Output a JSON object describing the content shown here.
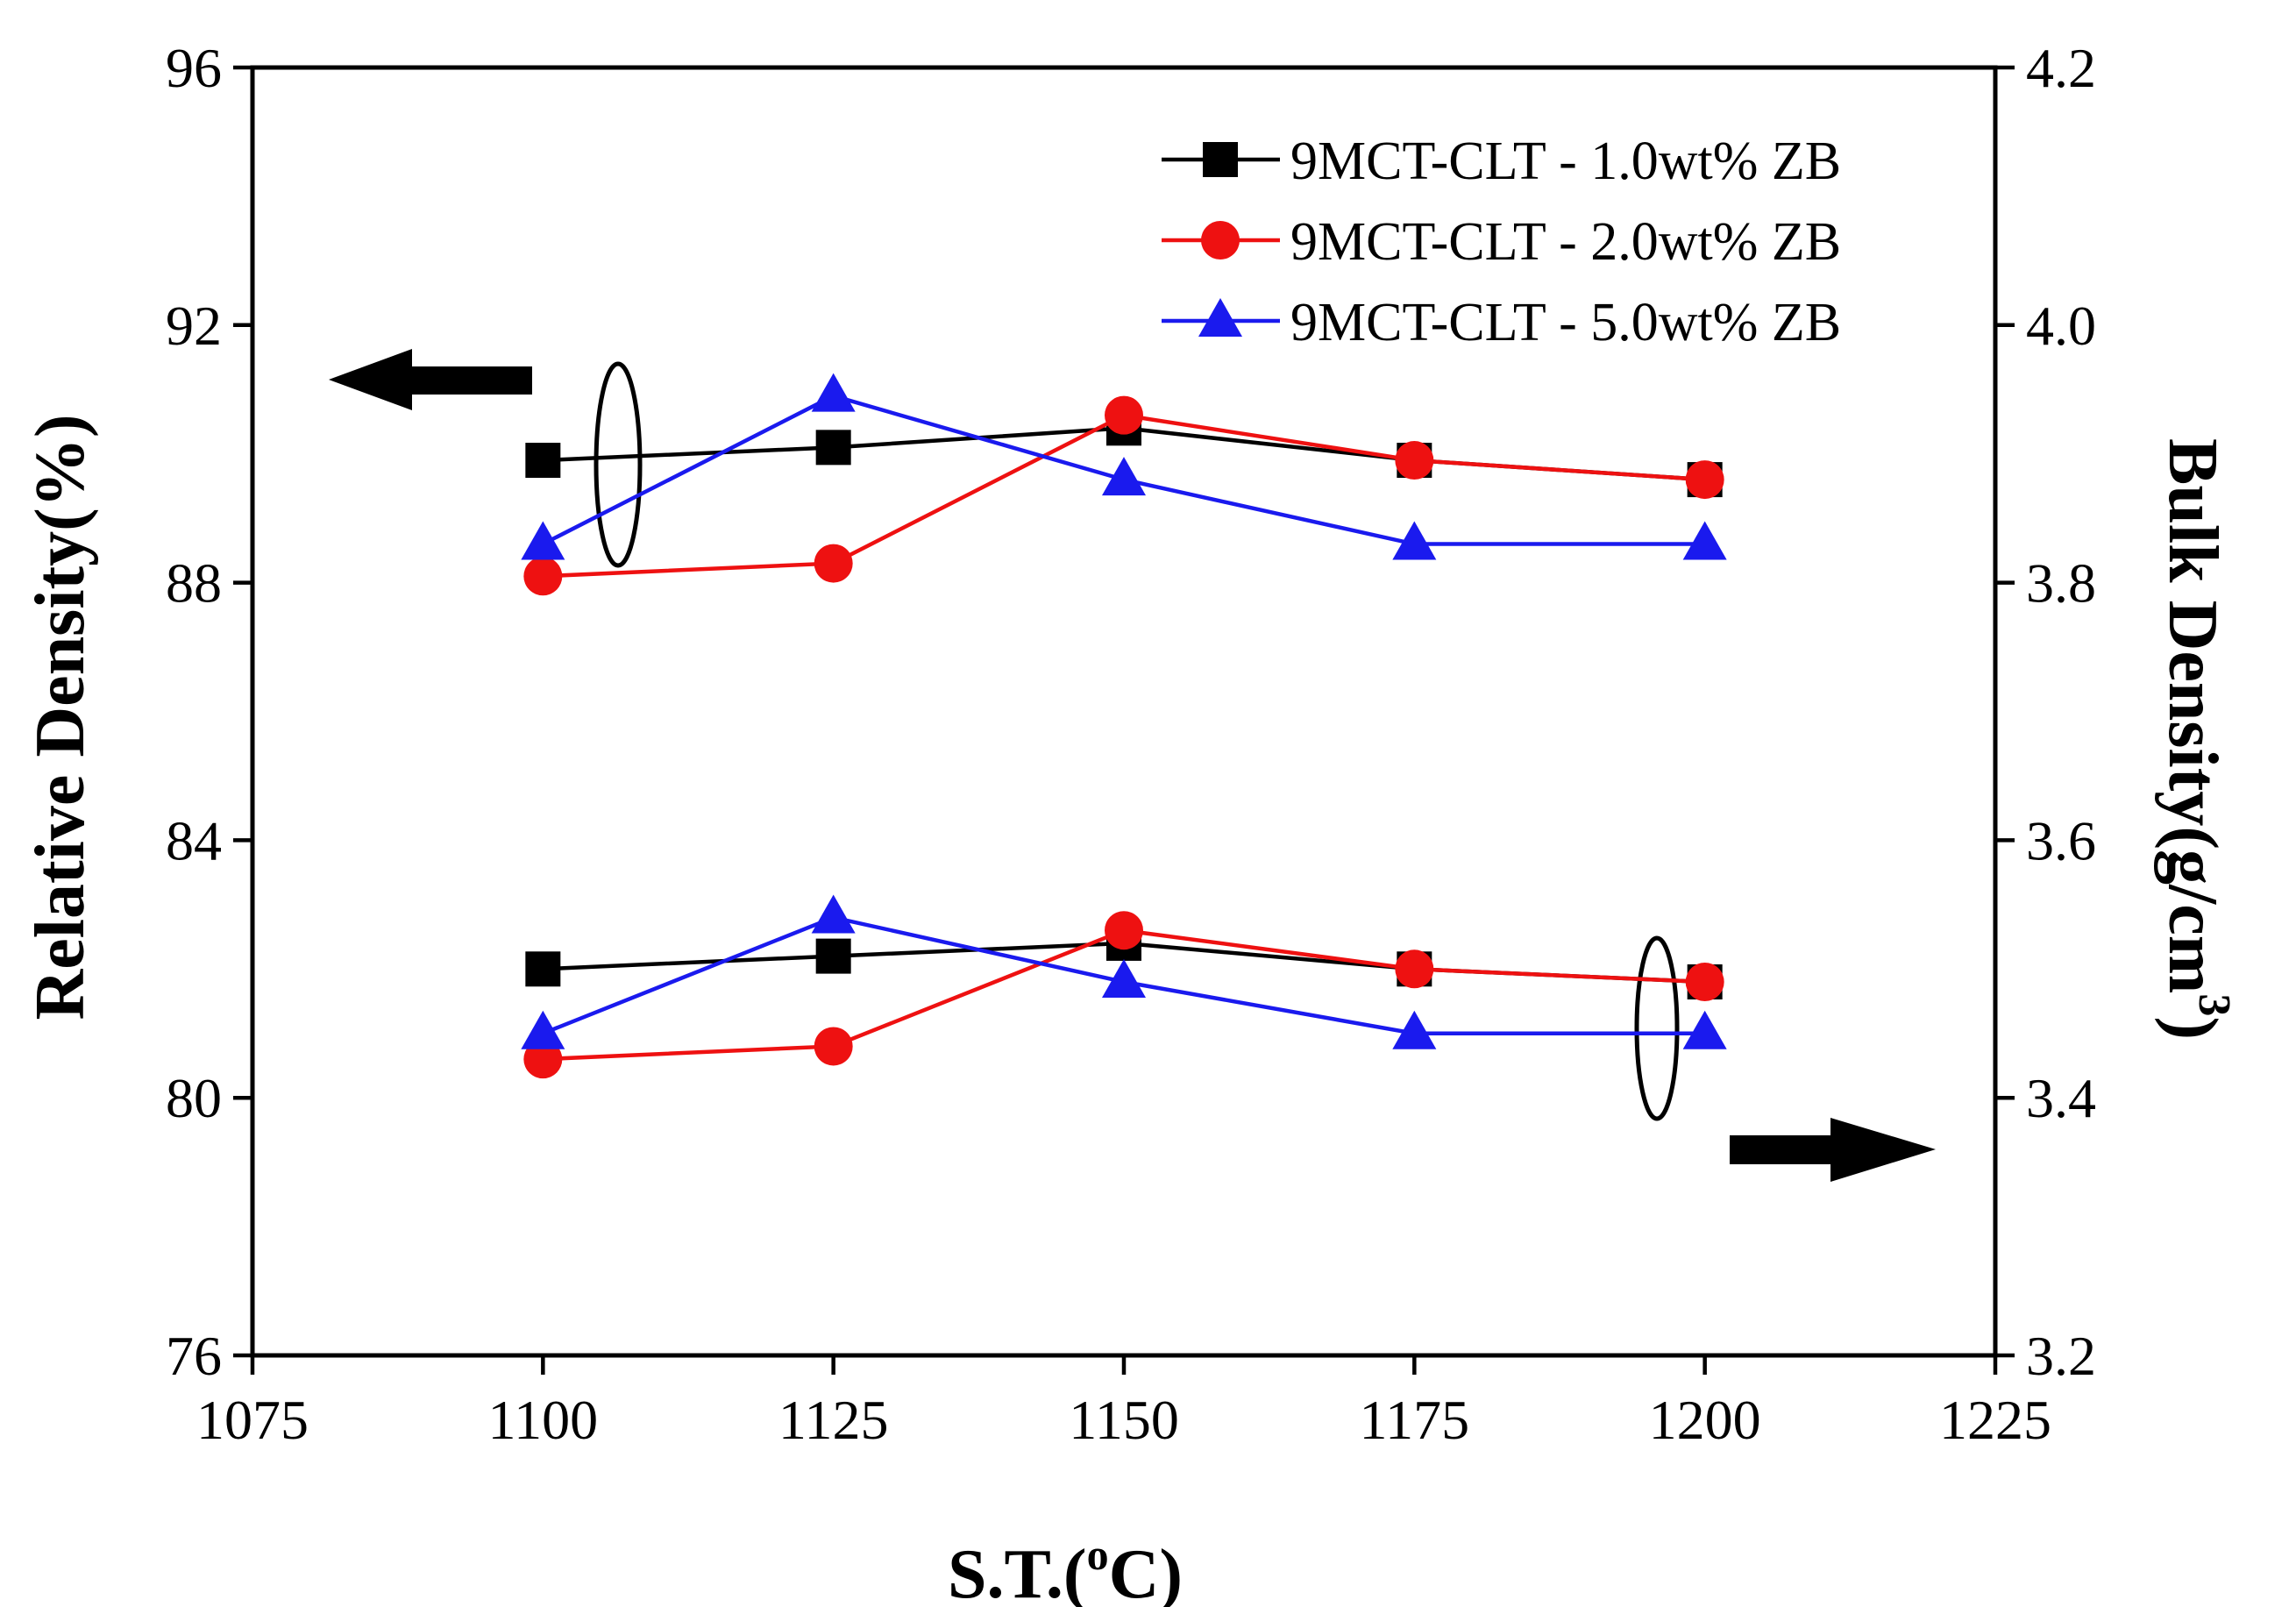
{
  "chart_data": {
    "type": "line",
    "xlabel": "S.T.(",
    "xlabel_sup": "o",
    "xlabel_end": "C)",
    "ylabel_left": "Relative Density(%)",
    "ylabel_right": "Bulk Density(g/cm",
    "ylabel_right_sup": "3",
    "ylabel_right_end": ")",
    "xlim": [
      1075,
      1225
    ],
    "ylim_left": [
      76,
      96
    ],
    "ylim_right": [
      3.2,
      4.2
    ],
    "x_ticks": [
      "1075",
      "1100",
      "1125",
      "1150",
      "1175",
      "1200",
      "1225"
    ],
    "y_ticks_left": [
      "76",
      "80",
      "84",
      "88",
      "92",
      "96"
    ],
    "y_ticks_right": [
      "3.2",
      "3.4",
      "3.6",
      "3.8",
      "4.0",
      "4.2"
    ],
    "x": [
      1100,
      1125,
      1150,
      1175,
      1200
    ],
    "legend_position": "top-right",
    "series": [
      {
        "name": "9MCT-CLT - 1.0wt% ZB",
        "axis": "left",
        "color": "#000000",
        "marker": "square",
        "values": [
          89.9,
          90.1,
          90.4,
          89.9,
          89.6
        ]
      },
      {
        "name": "9MCT-CLT - 2.0wt% ZB",
        "axis": "left",
        "color": "#ee1111",
        "marker": "circle",
        "values": [
          88.1,
          88.3,
          90.6,
          89.9,
          89.6
        ]
      },
      {
        "name": "9MCT-CLT - 5.0wt% ZB",
        "axis": "left",
        "color": "#1a1aee",
        "marker": "triangle",
        "values": [
          88.6,
          90.9,
          89.6,
          88.6,
          88.6
        ]
      },
      {
        "name": "9MCT-CLT - 1.0wt% ZB",
        "axis": "right",
        "color": "#000000",
        "marker": "square",
        "values": [
          3.5,
          3.51,
          3.52,
          3.5,
          3.49
        ]
      },
      {
        "name": "9MCT-CLT - 2.0wt% ZB",
        "axis": "right",
        "color": "#ee1111",
        "marker": "circle",
        "values": [
          3.43,
          3.44,
          3.53,
          3.5,
          3.49
        ]
      },
      {
        "name": "9MCT-CLT - 5.0wt% ZB",
        "axis": "right",
        "color": "#1a1aee",
        "marker": "triangle",
        "values": [
          3.45,
          3.54,
          3.49,
          3.45,
          3.45
        ]
      }
    ],
    "annotations": [
      {
        "type": "arrow",
        "direction": "left",
        "refers_to": "left axis"
      },
      {
        "type": "arrow",
        "direction": "right",
        "refers_to": "right axis"
      }
    ]
  }
}
